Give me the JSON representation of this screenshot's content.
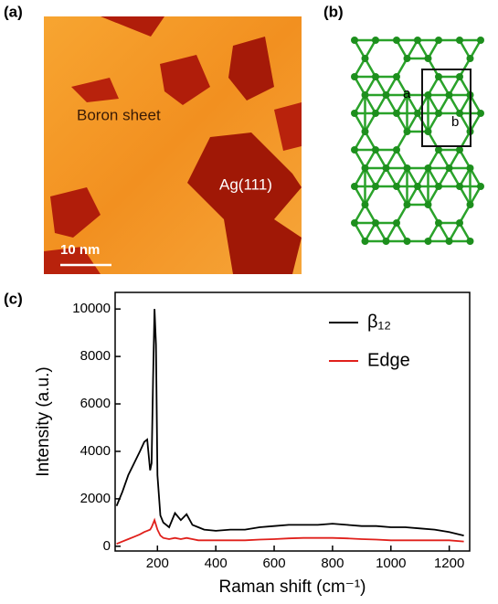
{
  "panel_labels": [
    "(a)",
    "(b)",
    "(c)"
  ],
  "image_a": {
    "labels": [
      "Boron sheet",
      "Ag(111)"
    ],
    "scale_bar": "10 nm"
  },
  "lattice_b": {
    "labels": [
      "a",
      "b"
    ]
  },
  "chart_data": {
    "type": "line",
    "x_label": "Raman shift (cm⁻¹)",
    "y_label": "Intensity (a.u.)",
    "x": [
      60,
      80,
      100,
      120,
      140,
      155,
      165,
      175,
      180,
      185,
      190,
      195,
      200,
      210,
      220,
      240,
      260,
      280,
      300,
      320,
      340,
      360,
      400,
      450,
      500,
      550,
      600,
      650,
      700,
      750,
      800,
      850,
      900,
      950,
      1000,
      1050,
      1100,
      1150,
      1200,
      1250
    ],
    "series": [
      {
        "name": "β₁₂",
        "color": "#000000",
        "values": [
          1700,
          2300,
          3000,
          3500,
          4000,
          4400,
          4500,
          3200,
          3500,
          7000,
          10000,
          8500,
          3000,
          1300,
          1000,
          800,
          1400,
          1100,
          1350,
          900,
          800,
          700,
          650,
          700,
          700,
          800,
          850,
          900,
          900,
          900,
          950,
          900,
          850,
          850,
          800,
          800,
          750,
          700,
          600,
          450
        ]
      },
      {
        "name": "Edge",
        "color": "#e0201b",
        "values": [
          100,
          200,
          300,
          400,
          500,
          600,
          650,
          700,
          800,
          950,
          1100,
          900,
          700,
          450,
          350,
          300,
          350,
          300,
          350,
          300,
          250,
          250,
          250,
          250,
          250,
          280,
          300,
          330,
          350,
          350,
          350,
          330,
          300,
          280,
          250,
          250,
          250,
          250,
          250,
          200
        ]
      }
    ],
    "xlim": [
      55,
      1270
    ],
    "ylim": [
      -200,
      10700
    ],
    "xticks": [
      200,
      400,
      600,
      800,
      1000,
      1200
    ],
    "yticks": [
      0,
      2000,
      4000,
      6000,
      8000,
      10000
    ],
    "legend": "upper right"
  }
}
